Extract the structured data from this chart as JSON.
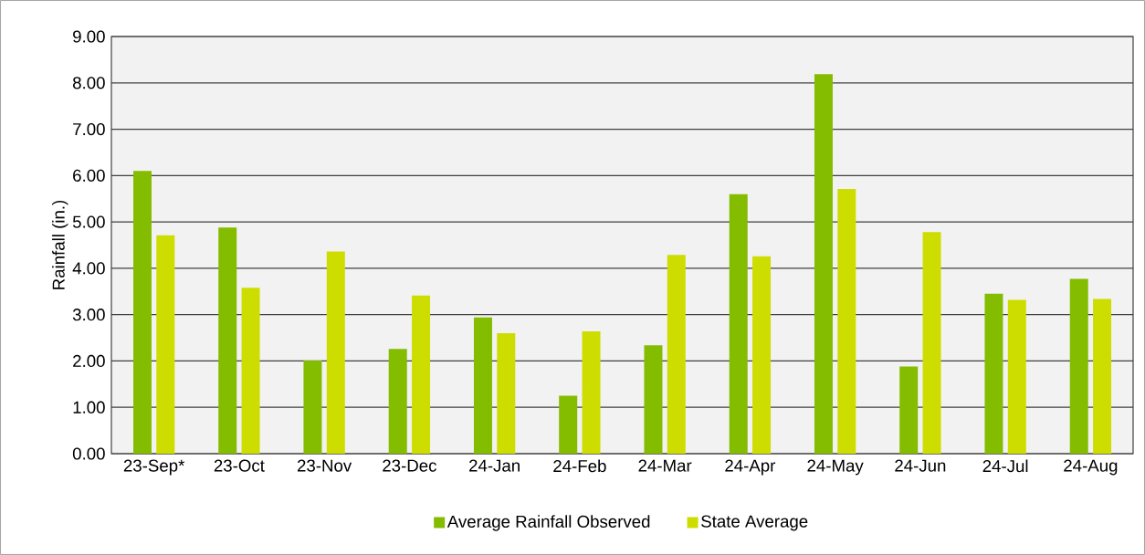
{
  "chart_data": {
    "type": "bar",
    "ylabel": "Rainfall (in.)",
    "categories": [
      "23-Sep*",
      "23-Oct",
      "23-Nov",
      "23-Dec",
      "24-Jan",
      "24-Feb",
      "24-Mar",
      "24-Apr",
      "24-May",
      "24-Jun",
      "24-Jul",
      "24-Aug"
    ],
    "series": [
      {
        "name": "Average Rainfall Observed",
        "color": "#84bc00",
        "values": [
          6.1,
          4.88,
          2.01,
          2.26,
          2.94,
          1.25,
          2.34,
          5.6,
          8.19,
          1.88,
          3.45,
          3.77
        ]
      },
      {
        "name": "State Average",
        "color": "#cedd00",
        "values": [
          4.71,
          3.58,
          4.36,
          3.41,
          2.6,
          2.64,
          4.29,
          4.26,
          5.71,
          4.78,
          3.32,
          3.34
        ]
      }
    ],
    "ylim": [
      0,
      9
    ],
    "yticks": [
      {
        "value": 0,
        "label": "0.00"
      },
      {
        "value": 1,
        "label": "1.00"
      },
      {
        "value": 2,
        "label": "2.00"
      },
      {
        "value": 3,
        "label": "3.00"
      },
      {
        "value": 4,
        "label": "4.00"
      },
      {
        "value": 5,
        "label": "5.00"
      },
      {
        "value": 6,
        "label": "6.00"
      },
      {
        "value": 7,
        "label": "7.00"
      },
      {
        "value": 8,
        "label": "8.00"
      },
      {
        "value": 9,
        "label": "9.00"
      }
    ],
    "grid": "y",
    "legend": "bottom"
  }
}
